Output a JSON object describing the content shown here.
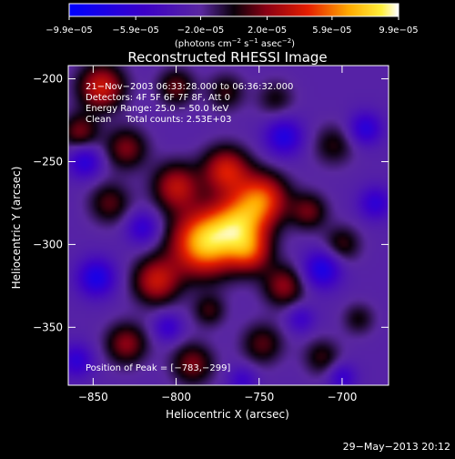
{
  "chart_data": {
    "type": "heatmap",
    "title": "Reconstructed RHESSI Image",
    "xlabel": "Heliocentric X (arcsec)",
    "ylabel": "Heliocentric Y (arcsec)",
    "xlim": [
      -865,
      -672
    ],
    "ylim": [
      -385,
      -192
    ],
    "x_ticks": [
      {
        "value": -850,
        "label": "−850"
      },
      {
        "value": -800,
        "label": "−800"
      },
      {
        "value": -750,
        "label": "−750"
      },
      {
        "value": -700,
        "label": "−700"
      }
    ],
    "y_ticks": [
      {
        "value": -200,
        "label": "−200"
      },
      {
        "value": -250,
        "label": "−250"
      },
      {
        "value": -300,
        "label": "−300"
      },
      {
        "value": -350,
        "label": "−350"
      }
    ],
    "colorbar": {
      "min": -9.9e-05,
      "max": 9.9e-05,
      "tick_labels": [
        "−9.9e−05",
        "−5.9e−05",
        "−2.0e−05",
        "2.0e−05",
        "5.9e−05",
        "9.9e−05"
      ],
      "tick_values": [
        -9.9e-05,
        -5.9e-05,
        -2e-05,
        2e-05,
        5.9e-05,
        9.9e-05
      ],
      "unit_prefix": "(photons cm",
      "unit_exp1": "−2",
      "unit_mid": " s",
      "unit_exp2": "−1",
      "unit_mid2": " asec",
      "unit_exp3": "−2",
      "unit_suffix": ")"
    },
    "annotations": [
      "21−Nov−2003 06:33:28.000 to 06:36:32.000",
      "Detectors: 4F 5F 6F 7F 8F, Att 0",
      "Energy Range: 25.0 − 50.0 keV",
      "Clean     Total counts: 2.53E+03"
    ],
    "peak_label": "Position of Peak = [−783,−299]",
    "peak": {
      "x": -783,
      "y": -299
    },
    "grid": false,
    "blobs": [
      {
        "x": -783,
        "y": -299,
        "sigma": 14,
        "amp": 1.0
      },
      {
        "x": -762,
        "y": -288,
        "sigma": 12,
        "amp": 0.75
      },
      {
        "x": -748,
        "y": -272,
        "sigma": 11,
        "amp": 0.7
      },
      {
        "x": -770,
        "y": -255,
        "sigma": 10,
        "amp": 0.62
      },
      {
        "x": -800,
        "y": -265,
        "sigma": 10,
        "amp": 0.55
      },
      {
        "x": -812,
        "y": -322,
        "sigma": 10,
        "amp": 0.58
      },
      {
        "x": -755,
        "y": -305,
        "sigma": 9,
        "amp": 0.5
      },
      {
        "x": -735,
        "y": -325,
        "sigma": 9,
        "amp": 0.45
      },
      {
        "x": -720,
        "y": -280,
        "sigma": 8,
        "amp": 0.38
      },
      {
        "x": -700,
        "y": -300,
        "sigma": 8,
        "amp": 0.32
      },
      {
        "x": -845,
        "y": -205,
        "sigma": 10,
        "amp": 0.62
      },
      {
        "x": -858,
        "y": -232,
        "sigma": 8,
        "amp": 0.4
      },
      {
        "x": -830,
        "y": -242,
        "sigma": 9,
        "amp": 0.42
      },
      {
        "x": -840,
        "y": -275,
        "sigma": 9,
        "amp": 0.35
      },
      {
        "x": -800,
        "y": -205,
        "sigma": 8,
        "amp": 0.38
      },
      {
        "x": -770,
        "y": -208,
        "sigma": 8,
        "amp": 0.3
      },
      {
        "x": -740,
        "y": -212,
        "sigma": 8,
        "amp": 0.25
      },
      {
        "x": -705,
        "y": -240,
        "sigma": 9,
        "amp": 0.28
      },
      {
        "x": -830,
        "y": -360,
        "sigma": 9,
        "amp": 0.45
      },
      {
        "x": -790,
        "y": -372,
        "sigma": 9,
        "amp": 0.42
      },
      {
        "x": -748,
        "y": -360,
        "sigma": 9,
        "amp": 0.35
      },
      {
        "x": -712,
        "y": -368,
        "sigma": 8,
        "amp": 0.3
      },
      {
        "x": -690,
        "y": -345,
        "sigma": 7,
        "amp": 0.25
      },
      {
        "x": -780,
        "y": -340,
        "sigma": 7,
        "amp": 0.3
      },
      {
        "x": -848,
        "y": -320,
        "sigma": 8,
        "amp": -0.55
      },
      {
        "x": -735,
        "y": -235,
        "sigma": 8,
        "amp": -0.5
      },
      {
        "x": -712,
        "y": -315,
        "sigma": 8,
        "amp": -0.55
      },
      {
        "x": -686,
        "y": -230,
        "sigma": 7,
        "amp": -0.45
      },
      {
        "x": -855,
        "y": -250,
        "sigma": 7,
        "amp": -0.45
      },
      {
        "x": -820,
        "y": -290,
        "sigma": 7,
        "amp": -0.4
      },
      {
        "x": -680,
        "y": -275,
        "sigma": 7,
        "amp": -0.4
      },
      {
        "x": -860,
        "y": -370,
        "sigma": 7,
        "amp": -0.4
      },
      {
        "x": -805,
        "y": -350,
        "sigma": 6,
        "amp": -0.35
      },
      {
        "x": -760,
        "y": -382,
        "sigma": 6,
        "amp": -0.3
      },
      {
        "x": -700,
        "y": -380,
        "sigma": 6,
        "amp": -0.35
      },
      {
        "x": -725,
        "y": -345,
        "sigma": 6,
        "amp": -0.3
      }
    ]
  },
  "footer": {
    "date": "29−May−2013 20:12"
  }
}
